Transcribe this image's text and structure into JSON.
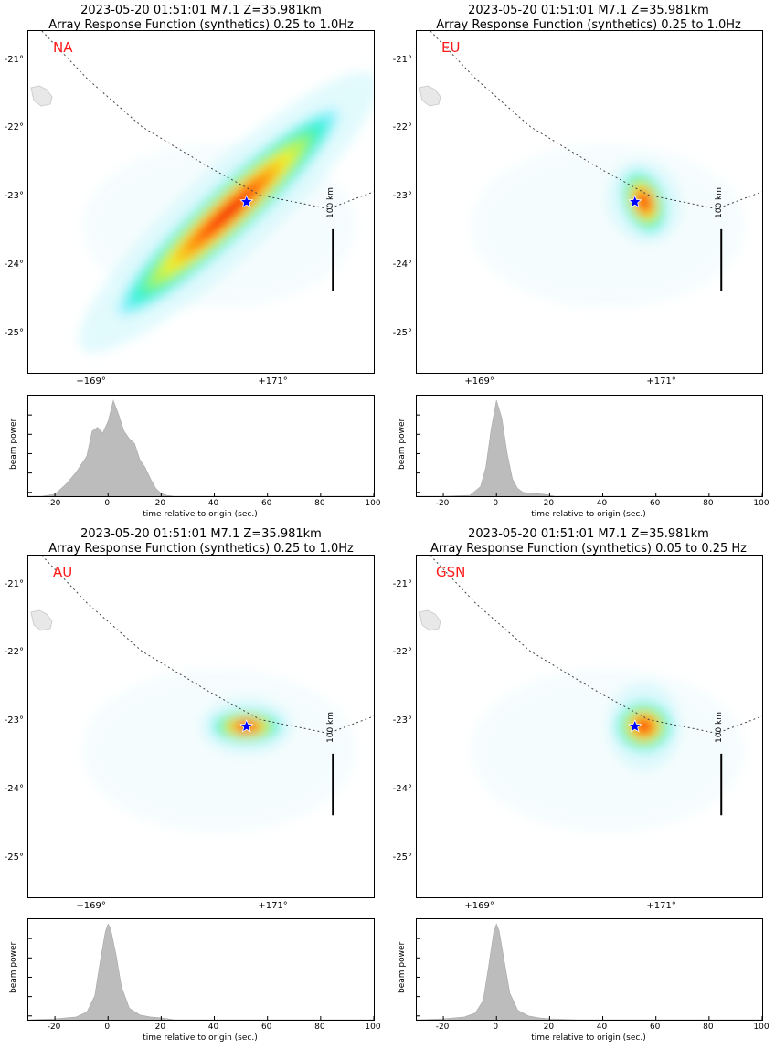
{
  "panels": [
    {
      "id": "NA",
      "title_line1": "2023-05-20 01:51:01 M7.1 Z=35.981km",
      "title_line2": "Array Response Function (synthetics) 0.25 to 1.0Hz",
      "network": "NA",
      "scale_label": "100 km",
      "lat_labels": [
        "-21°",
        "-22°",
        "-23°",
        "-24°",
        "-25°"
      ],
      "lon_labels": [
        "+169°",
        "+171°"
      ]
    },
    {
      "id": "EU",
      "title_line1": "2023-05-20 01:51:01 M7.1 Z=35.981km",
      "title_line2": "Array Response Function (synthetics) 0.25 to 1.0Hz",
      "network": "EU",
      "scale_label": "100 km",
      "lat_labels": [
        "-21°",
        "-22°",
        "-23°",
        "-24°",
        "-25°"
      ],
      "lon_labels": [
        "+169°",
        "+171°"
      ]
    },
    {
      "id": "AU",
      "title_line1": "2023-05-20 01:51:01 M7.1 Z=35.981km",
      "title_line2": "Array Response Function (synthetics) 0.25 to 1.0Hz",
      "network": "AU",
      "scale_label": "100 km",
      "lat_labels": [
        "-21°",
        "-22°",
        "-23°",
        "-24°",
        "-25°"
      ],
      "lon_labels": [
        "+169°",
        "+171°"
      ]
    },
    {
      "id": "GSN",
      "title_line1": "2023-05-20 01:51:01 M7.1 Z=35.981km",
      "title_line2": "Array Response Function (synthetics) 0.05 to 0.25 Hz",
      "network": "GSN",
      "scale_label": "100 km",
      "lat_labels": [
        "-21°",
        "-22°",
        "-23°",
        "-24°",
        "-25°"
      ],
      "lon_labels": [
        "+169°",
        "+171°"
      ]
    }
  ],
  "beam": {
    "ylabel": "beam power",
    "xlabel": "time relative to origin (sec.)",
    "xticks": [
      "-20",
      "0",
      "20",
      "40",
      "60",
      "80",
      "100"
    ]
  },
  "chart_data": [
    {
      "type": "area",
      "panel": "NA",
      "xlim": [
        -30,
        100
      ],
      "ylim": [
        0,
        1.05
      ],
      "x": [
        -30,
        -25,
        -20,
        -16,
        -12,
        -8,
        -6,
        -4,
        -2,
        0,
        2,
        4,
        6,
        8,
        10,
        12,
        14,
        16,
        18,
        20,
        22,
        25,
        30,
        40,
        60,
        80,
        100
      ],
      "y": [
        0,
        0.0,
        0.02,
        0.12,
        0.25,
        0.42,
        0.68,
        0.72,
        0.66,
        0.78,
        1.0,
        0.85,
        0.68,
        0.6,
        0.55,
        0.38,
        0.3,
        0.18,
        0.08,
        0.03,
        0.01,
        0,
        0,
        0,
        0,
        0,
        0
      ]
    },
    {
      "type": "area",
      "panel": "EU",
      "xlim": [
        -30,
        100
      ],
      "ylim": [
        0,
        1.05
      ],
      "x": [
        -30,
        -20,
        -10,
        -6,
        -4,
        -2,
        0,
        2,
        4,
        6,
        8,
        10,
        14,
        18,
        22,
        30,
        60,
        100
      ],
      "y": [
        0,
        0.0,
        0.01,
        0.1,
        0.3,
        0.7,
        1.0,
        0.82,
        0.45,
        0.18,
        0.08,
        0.04,
        0.03,
        0.02,
        0.0,
        0,
        0,
        0
      ],
      "title": "",
      "xlabel": "time relative to origin (sec.)",
      "ylabel": "beam power"
    },
    {
      "type": "area",
      "panel": "AU",
      "xlim": [
        -30,
        100
      ],
      "ylim": [
        0,
        1.05
      ],
      "x": [
        -30,
        -20,
        -12,
        -8,
        -5,
        -3,
        -1,
        0,
        1,
        3,
        5,
        8,
        12,
        16,
        20,
        25,
        30,
        60,
        100
      ],
      "y": [
        0,
        0.01,
        0.03,
        0.08,
        0.25,
        0.6,
        0.92,
        1.0,
        0.95,
        0.68,
        0.35,
        0.12,
        0.05,
        0.03,
        0.02,
        0.0,
        0,
        0,
        0
      ],
      "xlabel": "time relative to origin (sec.)",
      "ylabel": "beam power"
    },
    {
      "type": "area",
      "panel": "GSN",
      "xlim": [
        -30,
        100
      ],
      "ylim": [
        0,
        1.05
      ],
      "x": [
        -30,
        -20,
        -12,
        -8,
        -5,
        -3,
        -1,
        0,
        1,
        3,
        5,
        8,
        12,
        16,
        20,
        30,
        60,
        100
      ],
      "y": [
        0,
        0.01,
        0.03,
        0.07,
        0.2,
        0.55,
        0.92,
        1.0,
        0.93,
        0.6,
        0.28,
        0.1,
        0.04,
        0.02,
        0.01,
        0,
        0,
        0
      ],
      "xlabel": "time relative to origin (sec.)",
      "ylabel": "beam power"
    }
  ],
  "heatmap_lobes": [
    {
      "panel": "NA",
      "lobes": [
        {
          "lon": 170.5,
          "lat": -23.2,
          "intensity": 1.0,
          "len_km": 520,
          "wid_km": 85,
          "bearing": 47
        }
      ]
    },
    {
      "panel": "EU",
      "lobes": [
        {
          "lon": 170.8,
          "lat": -23.05,
          "intensity": 1.0,
          "len_km": 110,
          "wid_km": 70,
          "bearing": 160
        }
      ]
    },
    {
      "panel": "AU",
      "lobes": [
        {
          "lon": 170.7,
          "lat": -23.05,
          "intensity": 1.0,
          "len_km": 120,
          "wid_km": 55,
          "bearing": 90
        }
      ]
    },
    {
      "panel": "GSN",
      "lobes": [
        {
          "lon": 170.8,
          "lat": -23.05,
          "intensity": 1.0,
          "len_km": 95,
          "wid_km": 85,
          "bearing": 90
        }
      ]
    }
  ],
  "epicenter": {
    "lon": 170.7,
    "lat": -23.05,
    "marker": "star-icon",
    "color": "#0000ff"
  },
  "colors": {
    "title": "#000000",
    "network_label": "#ff1a1a",
    "beam_fill": "#bcbcbc",
    "trench": "#444444",
    "land": "#e8e8e8"
  }
}
